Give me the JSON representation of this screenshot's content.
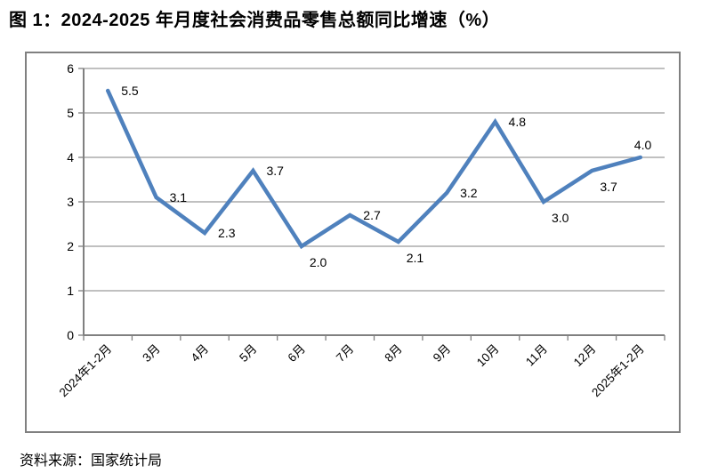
{
  "title": "图 1：2024-2025 年月度社会消费品零售总额同比增速（%）",
  "source": "资料来源：国家统计局",
  "chart_data": {
    "type": "line",
    "title": "2024-2025 年月度社会消费品零售总额同比增速（%）",
    "categories": [
      "2024年1-2月",
      "3月",
      "4月",
      "5月",
      "6月",
      "7月",
      "8月",
      "9月",
      "10月",
      "11月",
      "12月",
      "2025年1-2月"
    ],
    "values": [
      5.5,
      3.1,
      2.3,
      3.7,
      2.0,
      2.7,
      2.1,
      3.2,
      4.8,
      3.0,
      3.7,
      4.0
    ],
    "value_labels": [
      "5.5",
      "3.1",
      "2.3",
      "3.7",
      "2.0",
      "2.7",
      "2.1",
      "3.2",
      "4.8",
      "3.0",
      "3.7",
      "4.0"
    ],
    "label_positions": [
      "right",
      "right",
      "right",
      "right",
      "below",
      "right",
      "below",
      "right",
      "right",
      "below",
      "below",
      "above"
    ],
    "xlabel": "",
    "ylabel": "",
    "ylim": [
      0,
      6
    ],
    "ytick_interval": 1,
    "yticks": [
      "0",
      "1",
      "2",
      "3",
      "4",
      "5",
      "6"
    ],
    "grid": true,
    "legend_position": "none",
    "colors": {
      "line": "#4F81BD",
      "gridline": "#9A9A9A",
      "axis": "#808080",
      "label_text": "#000000"
    },
    "x_label_rotation_deg": -45
  }
}
